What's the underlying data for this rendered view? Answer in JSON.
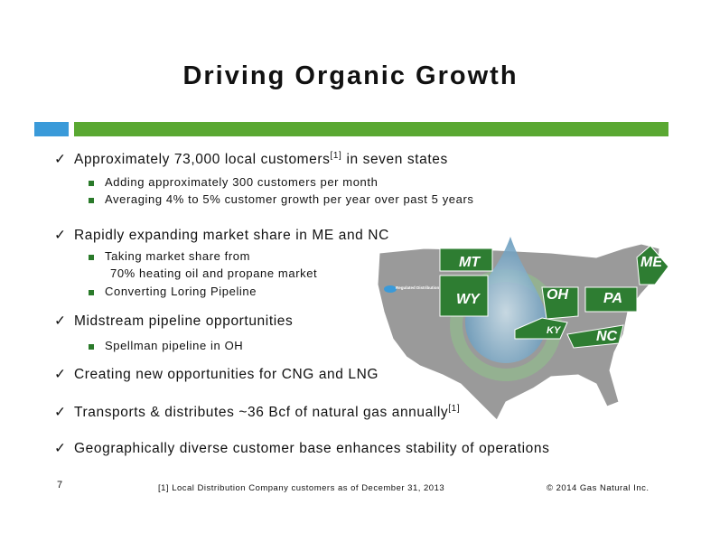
{
  "header": {
    "title": "Driving Organic Growth"
  },
  "bullets": [
    {
      "text": "Approximately 73,000 local customers",
      "sup": "[1]",
      "after": "in seven states",
      "items": [
        [
          "Adding approximately 300 customers per month"
        ],
        [
          "Averaging 4% to 5% customer growth per year over past 5 years"
        ]
      ]
    },
    {
      "text": "Rapidly expanding market share in ME and NC",
      "items": [
        [
          "Taking market share from",
          "70% heating oil and propane market"
        ],
        [
          "Converting Loring Pipeline"
        ]
      ]
    },
    {
      "text": "Midstream pipeline opportunities",
      "items": [
        [
          "Spellman pipeline in OH"
        ]
      ]
    },
    {
      "text": "Creating new opportunities for CNG and LNG",
      "items": []
    },
    {
      "text": "Transports & distributes ~36 Bcf of natural gas annually",
      "sup": "[1]",
      "items": []
    },
    {
      "text": "Geographically diverse customer base enhances stability of operations",
      "items": []
    }
  ],
  "map": {
    "legend": "Regulated Distribution",
    "states": [
      "MT",
      "WY",
      "OH",
      "PA",
      "ME",
      "KY",
      "NC"
    ]
  },
  "footer": {
    "page": "7",
    "footnote": "[1] Local Distribution Company customers as of December 31, 2013",
    "copyright": "© 2014 Gas Natural Inc."
  }
}
